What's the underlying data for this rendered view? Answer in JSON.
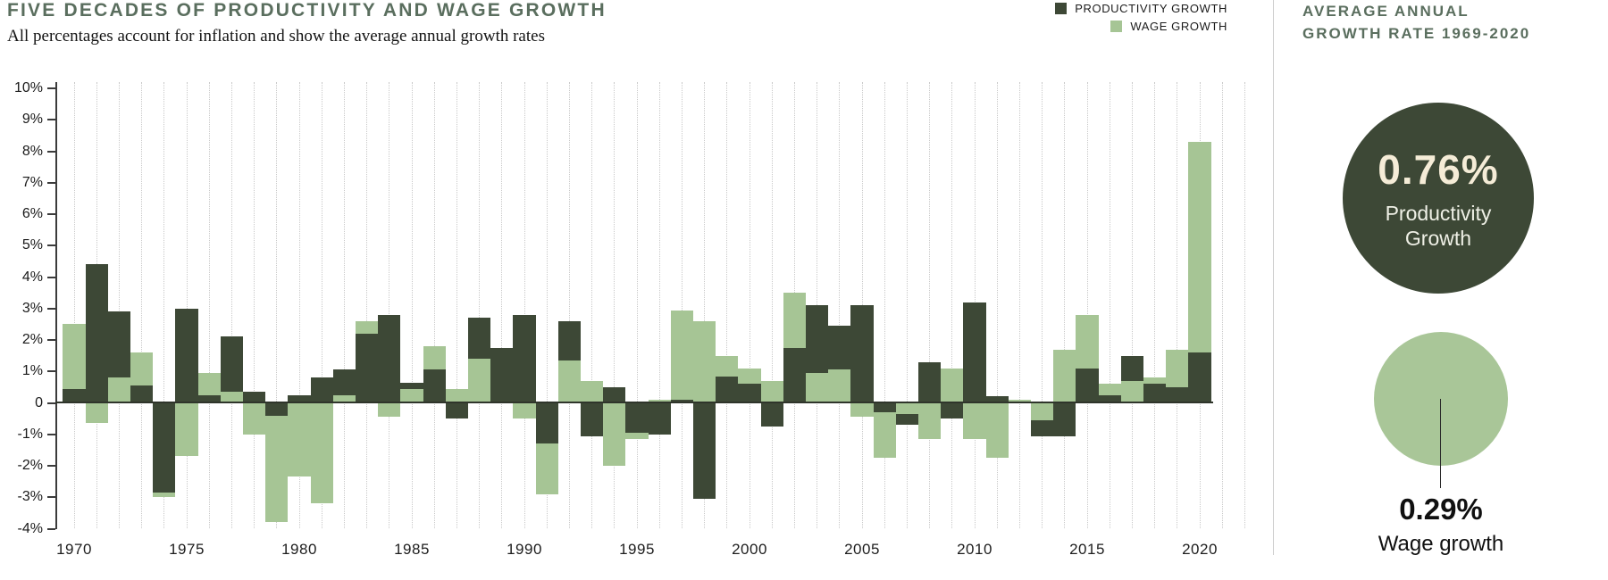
{
  "header": {
    "title": "FIVE DECADES OF PRODUCTIVITY AND WAGE GROWTH",
    "subtitle": "All percentages account for inflation and show the average annual growth rates"
  },
  "legend": [
    {
      "label": "PRODUCTIVITY GROWTH",
      "color": "#3d4836"
    },
    {
      "label": "WAGE GROWTH",
      "color": "#a6c595"
    }
  ],
  "side_panel": {
    "heading_line1": "AVERAGE ANNUAL",
    "heading_line2": "GROWTH RATE 1969-2020",
    "productivity": {
      "value": "0.76%",
      "label": "Productivity Growth",
      "circle_color": "#3d4836"
    },
    "wage": {
      "value": "0.29%",
      "label": "Wage growth",
      "circle_color": "#a9c698"
    }
  },
  "chart_data": {
    "type": "bar",
    "title": "Five decades of productivity and wage growth",
    "x": [
      1970,
      1971,
      1972,
      1973,
      1974,
      1975,
      1976,
      1977,
      1978,
      1979,
      1980,
      1981,
      1982,
      1983,
      1984,
      1985,
      1986,
      1987,
      1988,
      1989,
      1990,
      1991,
      1992,
      1993,
      1994,
      1995,
      1996,
      1997,
      1998,
      1999,
      2000,
      2001,
      2002,
      2003,
      2004,
      2005,
      2006,
      2007,
      2008,
      2009,
      2010,
      2011,
      2012,
      2013,
      2014,
      2015,
      2016,
      2017,
      2018,
      2019,
      2020
    ],
    "series": [
      {
        "name": "Productivity growth",
        "color": "#3d4836",
        "values": [
          0.45,
          4.4,
          2.9,
          0.55,
          -2.85,
          3.0,
          0.25,
          2.1,
          0.35,
          -0.4,
          0.25,
          0.8,
          1.05,
          2.2,
          2.8,
          0.65,
          1.05,
          -0.5,
          2.7,
          1.75,
          2.8,
          -1.3,
          2.6,
          -1.05,
          0.5,
          -0.95,
          -1.0,
          0.1,
          -3.05,
          0.85,
          0.6,
          -0.75,
          1.75,
          3.1,
          2.45,
          3.1,
          -0.3,
          -0.7,
          1.3,
          -0.5,
          3.2,
          0.2,
          0.05,
          -1.05,
          -1.05,
          1.1,
          0.25,
          1.5,
          0.6,
          0.5,
          1.6
        ]
      },
      {
        "name": "Wage growth",
        "color": "#a6c595",
        "values": [
          2.5,
          -0.65,
          0.8,
          1.6,
          -3.0,
          -1.7,
          0.95,
          0.35,
          -1.0,
          -3.8,
          -2.35,
          -3.2,
          0.25,
          2.6,
          -0.45,
          0.45,
          1.8,
          0.45,
          1.4,
          0.05,
          -0.5,
          -2.9,
          1.35,
          0.7,
          -2.0,
          -1.15,
          0.1,
          2.95,
          2.6,
          1.5,
          1.1,
          0.7,
          3.5,
          0.95,
          1.05,
          -0.45,
          -1.75,
          -0.35,
          -1.15,
          1.1,
          -1.15,
          -1.75,
          0.1,
          -0.55,
          1.7,
          2.8,
          0.6,
          0.7,
          0.8,
          1.7,
          8.3
        ]
      }
    ],
    "ylim": [
      -4,
      10
    ],
    "yticks": [
      "10%",
      "9%",
      "8%",
      "7%",
      "6%",
      "5%",
      "4%",
      "3%",
      "2%",
      "1%",
      "0",
      "-1%",
      "-2%",
      "-3%",
      "-4%"
    ],
    "xticks": [
      1970,
      1975,
      1980,
      1985,
      1990,
      1995,
      2000,
      2005,
      2010,
      2015,
      2020
    ],
    "bar_style": "overlapping",
    "grid": "vertical-dotted",
    "legend_position": "top-right"
  }
}
